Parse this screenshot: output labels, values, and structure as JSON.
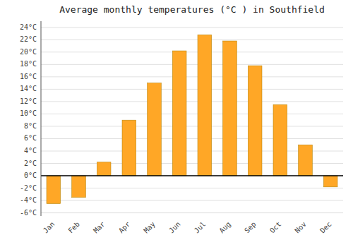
{
  "chart_data": {
    "type": "bar",
    "title": "Average monthly temperatures (°C ) in Southfield",
    "categories": [
      "Jan",
      "Feb",
      "Mar",
      "Apr",
      "May",
      "Jun",
      "Jul",
      "Aug",
      "Sep",
      "Oct",
      "Nov",
      "Dec"
    ],
    "values": [
      -4.5,
      -3.5,
      2.2,
      9.0,
      15.0,
      20.2,
      22.8,
      21.8,
      17.8,
      11.5,
      5.0,
      -1.8
    ],
    "color": "#FFA726",
    "ylim": [
      -6.5,
      25
    ],
    "yticks": [
      {
        "value": -6,
        "label": "-6°C"
      },
      {
        "value": -4,
        "label": "-4°C"
      },
      {
        "value": -2,
        "label": "-2°C"
      },
      {
        "value": 0,
        "label": "0°C"
      },
      {
        "value": 2,
        "label": "2°C"
      },
      {
        "value": 4,
        "label": "4°C"
      },
      {
        "value": 6,
        "label": "6°C"
      },
      {
        "value": 8,
        "label": "8°C"
      },
      {
        "value": 10,
        "label": "10°C"
      },
      {
        "value": 12,
        "label": "12°C"
      },
      {
        "value": 14,
        "label": "14°C"
      },
      {
        "value": 16,
        "label": "16°C"
      },
      {
        "value": 18,
        "label": "18°C"
      },
      {
        "value": 20,
        "label": "20°C"
      },
      {
        "value": 22,
        "label": "22°C"
      },
      {
        "value": 24,
        "label": "24°C"
      }
    ],
    "grid": true
  }
}
